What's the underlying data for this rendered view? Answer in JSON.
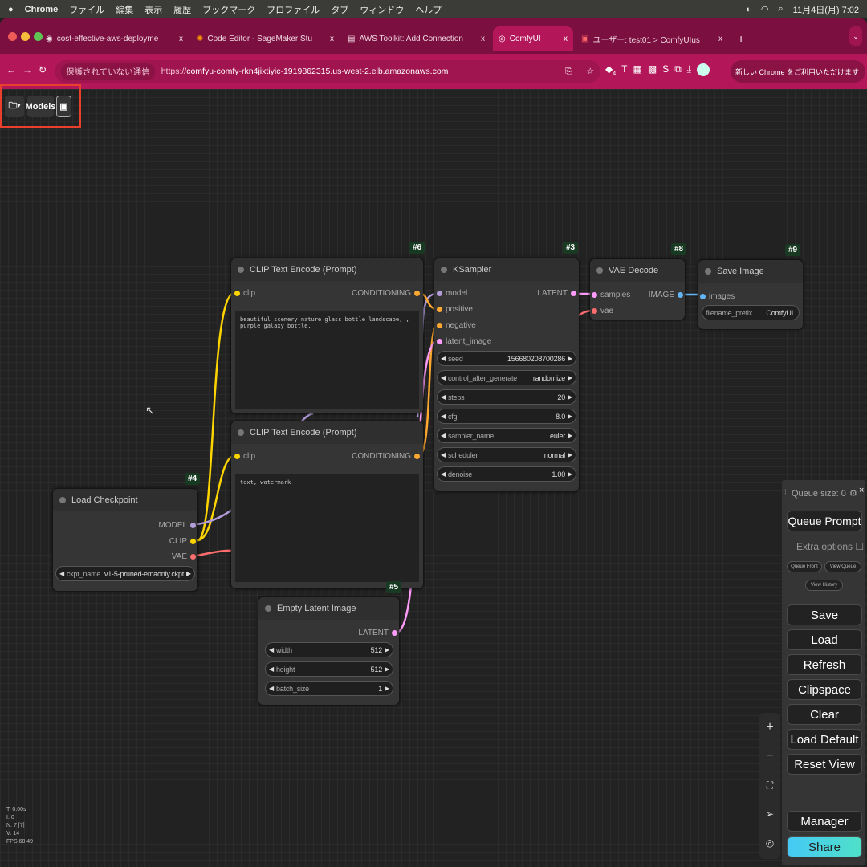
{
  "os_menubar": {
    "app": "Chrome",
    "items": [
      "ファイル",
      "編集",
      "表示",
      "履歴",
      "ブックマーク",
      "プロファイル",
      "タブ",
      "ウィンドウ",
      "ヘルプ"
    ],
    "clock": "11月4日(月) 7:02"
  },
  "browser": {
    "tabs": [
      {
        "label": "cost-effective-aws-deployme",
        "icon": "github-icon"
      },
      {
        "label": "Code Editor - SageMaker Stu",
        "icon": "sagemaker-icon"
      },
      {
        "label": "AWS Toolkit: Add Connection",
        "icon": "document-icon"
      },
      {
        "label": "ComfyUI",
        "icon": "comfyui-icon",
        "active": true
      },
      {
        "label": "ユーザー: test01 > ComfyUIus",
        "icon": "aws-icon"
      }
    ],
    "insecure_label": "保護されていない通信",
    "url_scheme": "https://",
    "url_rest": "comfyu-comfy-rkn4jixtiyic-1919862315.us-west-2.elb.amazonaws.com",
    "extension_badge": "4",
    "update_label": "新しい Chrome をご利用いただけます"
  },
  "toolbar": {
    "models_label": "Models"
  },
  "nodes": {
    "clip6": {
      "id": "#6",
      "title": "CLIP Text Encode (Prompt)",
      "input": "clip",
      "output": "CONDITIONING",
      "text": "beautiful scenery nature glass bottle landscape, , purple galaxy bottle,"
    },
    "clip7": {
      "title": "CLIP Text Encode (Prompt)",
      "input": "clip",
      "output": "CONDITIONING",
      "text": "text, watermark"
    },
    "ksampler": {
      "id": "#3",
      "title": "KSampler",
      "inputs": [
        "model",
        "positive",
        "negative",
        "latent_image"
      ],
      "output": "LATENT",
      "widgets": [
        {
          "name": "seed",
          "value": "156680208700286"
        },
        {
          "name": "control_after_generate",
          "value": "randomize"
        },
        {
          "name": "steps",
          "value": "20"
        },
        {
          "name": "cfg",
          "value": "8.0"
        },
        {
          "name": "sampler_name",
          "value": "euler"
        },
        {
          "name": "scheduler",
          "value": "normal"
        },
        {
          "name": "denoise",
          "value": "1.00"
        }
      ]
    },
    "vae": {
      "id": "#8",
      "title": "VAE Decode",
      "inputs": [
        "samples",
        "vae"
      ],
      "output": "IMAGE"
    },
    "save": {
      "id": "#9",
      "title": "Save Image",
      "input": "images",
      "widget": {
        "name": "filename_prefix",
        "value": "ComfyUI"
      }
    },
    "ckpt": {
      "id": "#4",
      "title": "Load Checkpoint",
      "outputs": [
        "MODEL",
        "CLIP",
        "VAE"
      ],
      "widget": {
        "name": "ckpt_name",
        "value": "v1-5-pruned-emaonly.ckpt"
      }
    },
    "latent": {
      "id": "#5",
      "title": "Empty Latent Image",
      "output": "LATENT",
      "widgets": [
        {
          "name": "width",
          "value": "512"
        },
        {
          "name": "height",
          "value": "512"
        },
        {
          "name": "batch_size",
          "value": "1"
        }
      ]
    }
  },
  "panel": {
    "queue_size": "Queue size: 0",
    "queue_prompt": "Queue Prompt",
    "extra_options": "Extra options",
    "queue_front": "Queue Front",
    "view_queue": "View Queue",
    "view_history": "View History",
    "save": "Save",
    "load": "Load",
    "refresh": "Refresh",
    "clipspace": "Clipspace",
    "clear": "Clear",
    "load_default": "Load Default",
    "reset_view": "Reset View",
    "manager": "Manager",
    "share": "Share"
  },
  "stats": [
    "T: 0.00s",
    "I: 0",
    "N: 7 [7]",
    "V: 14",
    "FPS:68.49"
  ],
  "colors": {
    "tab_strip": "#7b0f3f",
    "address_bar": "#b3175a",
    "clip_link": "#ffd500",
    "model_link": "#b39ddb",
    "conditioning_link": "#ffa931",
    "latent_link": "#ff9cf9",
    "vae_link": "#ff6e6e",
    "image_link": "#64b5f6",
    "highlight": "#e8402c"
  }
}
